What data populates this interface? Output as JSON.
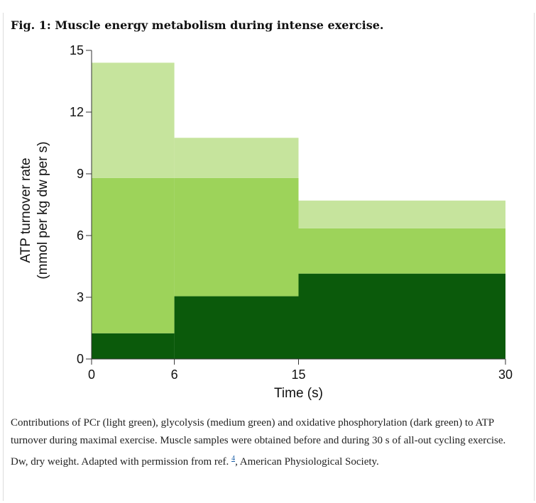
{
  "figure": {
    "title": "Fig. 1: Muscle energy metabolism during intense exercise.",
    "caption_before_ref": "Contributions of PCr (light green), glycolysis (medium green) and oxidative phosphorylation (dark green) to ATP turnover during maximal exercise. Muscle samples were obtained before and during 30 s of all-out cycling exercise. Dw, dry weight. Adapted with permission from ref. ",
    "caption_ref": "4",
    "caption_after_ref": ", American Physiological Society."
  },
  "chart_data": {
    "type": "area",
    "stacked": true,
    "step": true,
    "xlabel": "Time (s)",
    "ylabel_line1": "ATP turnover rate",
    "ylabel_line2": "(mmol per kg dw per s)",
    "xlim": [
      0,
      30
    ],
    "ylim": [
      0,
      15
    ],
    "x_ticks": [
      0,
      6,
      15,
      30
    ],
    "y_ticks": [
      0,
      3,
      6,
      9,
      12,
      15
    ],
    "intervals": [
      {
        "start": 0,
        "end": 6
      },
      {
        "start": 6,
        "end": 15
      },
      {
        "start": 15,
        "end": 30
      }
    ],
    "series": [
      {
        "color": "#0b5a0b",
        "values": [
          1.25,
          3.05,
          4.15
        ]
      },
      {
        "color": "#9dd35a",
        "values": [
          7.55,
          5.75,
          2.2
        ]
      },
      {
        "color": "#c6e49d",
        "values": [
          5.6,
          1.95,
          1.35
        ]
      }
    ],
    "grid": false
  }
}
